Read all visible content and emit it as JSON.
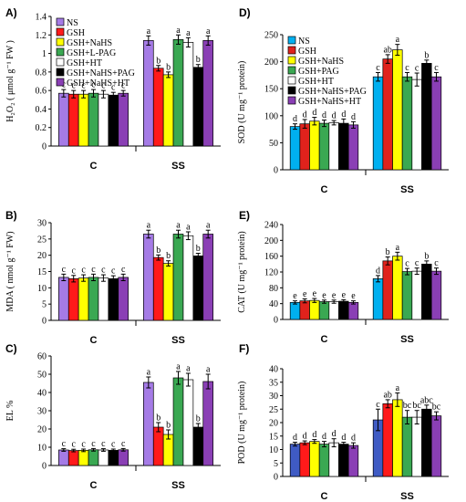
{
  "chart_data": [
    {
      "panel": "A)",
      "type": "bar",
      "ylabel": "H₂O₂ ( μmol g⁻¹ FW )",
      "ylim": [
        0,
        1.4
      ],
      "yticks": [
        0,
        0.2,
        0.4,
        0.6,
        0.8,
        1,
        1.2,
        1.4
      ],
      "categories": [
        "C",
        "SS"
      ],
      "legend": "top-left",
      "series": [
        {
          "name": "NS",
          "color": "#a57be6",
          "values": [
            0.57,
            1.14
          ],
          "errors": [
            0.04,
            0.05
          ],
          "labels": [
            "c",
            "a"
          ]
        },
        {
          "name": "GSH",
          "color": "#ff1a1a",
          "values": [
            0.56,
            0.84
          ],
          "errors": [
            0.04,
            0.03
          ],
          "labels": [
            "c",
            "b"
          ]
        },
        {
          "name": "GSH+NaHS",
          "color": "#ffff00",
          "values": [
            0.56,
            0.77
          ],
          "errors": [
            0.04,
            0.03
          ],
          "labels": [
            "c",
            "b"
          ]
        },
        {
          "name": "GSH+L-PAG",
          "color": "#3aa852",
          "values": [
            0.57,
            1.15
          ],
          "errors": [
            0.04,
            0.05
          ],
          "labels": [
            "c",
            "a"
          ]
        },
        {
          "name": "GSH+HT",
          "color": "#ffffff",
          "values": [
            0.56,
            1.12
          ],
          "errors": [
            0.04,
            0.05
          ],
          "labels": [
            "c",
            "a"
          ]
        },
        {
          "name": "GSH+NaHS+PAG",
          "color": "#000000",
          "values": [
            0.55,
            0.85
          ],
          "errors": [
            0.03,
            0.03
          ],
          "labels": [
            "c",
            "b"
          ]
        },
        {
          "name": "GSH+NaHS+HT",
          "color": "#8a3fb5",
          "values": [
            0.57,
            1.14
          ],
          "errors": [
            0.03,
            0.05
          ],
          "labels": [
            "c",
            "a"
          ]
        }
      ]
    },
    {
      "panel": "B)",
      "type": "bar",
      "ylabel": "MDA ( nmol g⁻¹ FW)",
      "ylim": [
        0,
        30
      ],
      "yticks": [
        0,
        5,
        10,
        15,
        20,
        25,
        30
      ],
      "categories": [
        "C",
        "SS"
      ],
      "series": [
        {
          "name": "NS",
          "color": "#a57be6",
          "values": [
            13.2,
            26.5
          ],
          "errors": [
            1.0,
            1.2
          ],
          "labels": [
            "c",
            "a"
          ]
        },
        {
          "name": "GSH",
          "color": "#ff1a1a",
          "values": [
            12.8,
            19.3
          ],
          "errors": [
            1.0,
            0.8
          ],
          "labels": [
            "c",
            "b"
          ]
        },
        {
          "name": "GSH+NaHS",
          "color": "#ffff00",
          "values": [
            13.0,
            17.5
          ],
          "errors": [
            1.0,
            0.8
          ],
          "labels": [
            "c",
            "b"
          ]
        },
        {
          "name": "GSH+L-PAG",
          "color": "#3aa852",
          "values": [
            13.2,
            26.5
          ],
          "errors": [
            1.0,
            1.2
          ],
          "labels": [
            "c",
            "a"
          ]
        },
        {
          "name": "GSH+HT",
          "color": "#ffffff",
          "values": [
            13.0,
            26.0
          ],
          "errors": [
            1.0,
            1.2
          ],
          "labels": [
            "c",
            "a"
          ]
        },
        {
          "name": "GSH+NaHS+PAG",
          "color": "#000000",
          "values": [
            12.8,
            19.8
          ],
          "errors": [
            0.9,
            0.8
          ],
          "labels": [
            "c",
            "b"
          ]
        },
        {
          "name": "GSH+NaHS+HT",
          "color": "#8a3fb5",
          "values": [
            13.2,
            26.5
          ],
          "errors": [
            1.0,
            1.2
          ],
          "labels": [
            "c",
            "a"
          ]
        }
      ]
    },
    {
      "panel": "C)",
      "type": "bar",
      "ylabel": "EL %",
      "ylim": [
        0,
        60
      ],
      "yticks": [
        0,
        10,
        20,
        30,
        40,
        50,
        60
      ],
      "categories": [
        "C",
        "SS"
      ],
      "series": [
        {
          "name": "NS",
          "color": "#a57be6",
          "values": [
            8.5,
            45.5
          ],
          "errors": [
            0.7,
            3.0
          ],
          "labels": [
            "c",
            "a"
          ]
        },
        {
          "name": "GSH",
          "color": "#ff1a1a",
          "values": [
            8.2,
            21.0
          ],
          "errors": [
            0.7,
            2.5
          ],
          "labels": [
            "c",
            "b"
          ]
        },
        {
          "name": "GSH+NaHS",
          "color": "#ffff00",
          "values": [
            8.3,
            17.0
          ],
          "errors": [
            0.7,
            2.5
          ],
          "labels": [
            "c",
            "b"
          ]
        },
        {
          "name": "GSH+L-PAG",
          "color": "#3aa852",
          "values": [
            8.6,
            48.0
          ],
          "errors": [
            0.7,
            3.5
          ],
          "labels": [
            "c",
            "a"
          ]
        },
        {
          "name": "GSH+HT",
          "color": "#ffffff",
          "values": [
            8.5,
            47.0
          ],
          "errors": [
            0.7,
            3.5
          ],
          "labels": [
            "c",
            "a"
          ]
        },
        {
          "name": "GSH+NaHS+PAG",
          "color": "#000000",
          "values": [
            8.3,
            21.0
          ],
          "errors": [
            0.7,
            2.0
          ],
          "labels": [
            "c",
            "b"
          ]
        },
        {
          "name": "GSH+NaHS+HT",
          "color": "#8a3fb5",
          "values": [
            8.6,
            46.0
          ],
          "errors": [
            0.7,
            4.0
          ],
          "labels": [
            "c",
            "a"
          ]
        }
      ]
    },
    {
      "panel": "D)",
      "type": "bar",
      "ylabel": "SOD (U mg⁻¹ protein)",
      "ylim": [
        0,
        250
      ],
      "yticks": [
        0,
        50,
        100,
        150,
        200,
        250
      ],
      "categories": [
        "C",
        "SS"
      ],
      "legend": "top-left",
      "series": [
        {
          "name": "NS",
          "color": "#00b0f0",
          "values": [
            80,
            172
          ],
          "errors": [
            5,
            8
          ],
          "labels": [
            "d",
            "c"
          ]
        },
        {
          "name": "GSH",
          "color": "#e0221c",
          "values": [
            85,
            205
          ],
          "errors": [
            8,
            8
          ],
          "labels": [
            "d",
            "ab"
          ]
        },
        {
          "name": "GSH+NaHS",
          "color": "#ffff00",
          "values": [
            90,
            222
          ],
          "errors": [
            7,
            10
          ],
          "labels": [
            "d",
            "a"
          ]
        },
        {
          "name": "GSH+PAG",
          "color": "#3aa852",
          "values": [
            86,
            172
          ],
          "errors": [
            6,
            8
          ],
          "labels": [
            "d",
            "c"
          ]
        },
        {
          "name": "GSH+HT",
          "color": "#ffffff",
          "values": [
            87,
            167
          ],
          "errors": [
            4,
            12
          ],
          "labels": [
            "d",
            "c"
          ]
        },
        {
          "name": "GSH+NaHS+PAG",
          "color": "#000000",
          "values": [
            86,
            197
          ],
          "errors": [
            8,
            6
          ],
          "labels": [
            "d",
            "b"
          ]
        },
        {
          "name": "GSH+NaHS+HT",
          "color": "#8a3fb5",
          "values": [
            83,
            172
          ],
          "errors": [
            6,
            8
          ],
          "labels": [
            "d",
            "c"
          ]
        }
      ]
    },
    {
      "panel": "E)",
      "type": "bar",
      "ylabel": "CAT (U mg⁻¹ protein)",
      "ylim": [
        0,
        240
      ],
      "yticks": [
        0,
        40,
        80,
        120,
        160,
        200,
        240
      ],
      "categories": [
        "C",
        "SS"
      ],
      "series": [
        {
          "name": "NS",
          "color": "#00b0f0",
          "values": [
            43,
            103
          ],
          "errors": [
            4,
            8
          ],
          "labels": [
            "e",
            "d"
          ]
        },
        {
          "name": "GSH",
          "color": "#e0221c",
          "values": [
            47,
            148
          ],
          "errors": [
            5,
            10
          ],
          "labels": [
            "e",
            "b"
          ]
        },
        {
          "name": "GSH+NaHS",
          "color": "#ffff00",
          "values": [
            48,
            160
          ],
          "errors": [
            5,
            10
          ],
          "labels": [
            "e",
            "a"
          ]
        },
        {
          "name": "GSH+PAG",
          "color": "#3aa852",
          "values": [
            45,
            121
          ],
          "errors": [
            4,
            8
          ],
          "labels": [
            "e",
            "c"
          ]
        },
        {
          "name": "GSH+HT",
          "color": "#ffffff",
          "values": [
            45,
            122
          ],
          "errors": [
            4,
            8
          ],
          "labels": [
            "e",
            "c"
          ]
        },
        {
          "name": "GSH+NaHS+PAG",
          "color": "#000000",
          "values": [
            46,
            140
          ],
          "errors": [
            4,
            8
          ],
          "labels": [
            "e",
            "b"
          ]
        },
        {
          "name": "GSH+NaHS+HT",
          "color": "#8a3fb5",
          "values": [
            43,
            122
          ],
          "errors": [
            4,
            8
          ],
          "labels": [
            "e",
            "c"
          ]
        }
      ]
    },
    {
      "panel": "F)",
      "type": "bar",
      "ylabel": "POD (U mg⁻¹ protein)",
      "ylim": [
        0,
        40
      ],
      "yticks": [
        0,
        5,
        10,
        15,
        20,
        25,
        30,
        35,
        40
      ],
      "categories": [
        "C",
        "SS"
      ],
      "series": [
        {
          "name": "NS",
          "color": "#3f5bc4",
          "values": [
            12.0,
            21.0
          ],
          "errors": [
            0.7,
            4.0
          ],
          "labels": [
            "d",
            "c"
          ]
        },
        {
          "name": "GSH",
          "color": "#ff1a1a",
          "values": [
            12.5,
            27.0
          ],
          "errors": [
            0.7,
            1.5
          ],
          "labels": [
            "d",
            "ab"
          ]
        },
        {
          "name": "GSH+NaHS",
          "color": "#ffff00",
          "values": [
            13.0,
            28.5
          ],
          "errors": [
            0.7,
            2.5
          ],
          "labels": [
            "d",
            "a"
          ]
        },
        {
          "name": "GSH+PAG",
          "color": "#3aa852",
          "values": [
            12.0,
            22.0
          ],
          "errors": [
            1.0,
            2.5
          ],
          "labels": [
            "d",
            "bc"
          ]
        },
        {
          "name": "GSH+HT",
          "color": "#ffffff",
          "values": [
            12.5,
            22.0
          ],
          "errors": [
            1.5,
            2.5
          ],
          "labels": [
            "d",
            "bc"
          ]
        },
        {
          "name": "GSH+NaHS+PAG",
          "color": "#000000",
          "values": [
            12.0,
            25.0
          ],
          "errors": [
            0.7,
            1.5
          ],
          "labels": [
            "d",
            "abc"
          ]
        },
        {
          "name": "GSH+NaHS+HT",
          "color": "#8a3fb5",
          "values": [
            11.5,
            22.5
          ],
          "errors": [
            1.0,
            1.5
          ],
          "labels": [
            "d",
            "bc"
          ]
        }
      ]
    }
  ]
}
